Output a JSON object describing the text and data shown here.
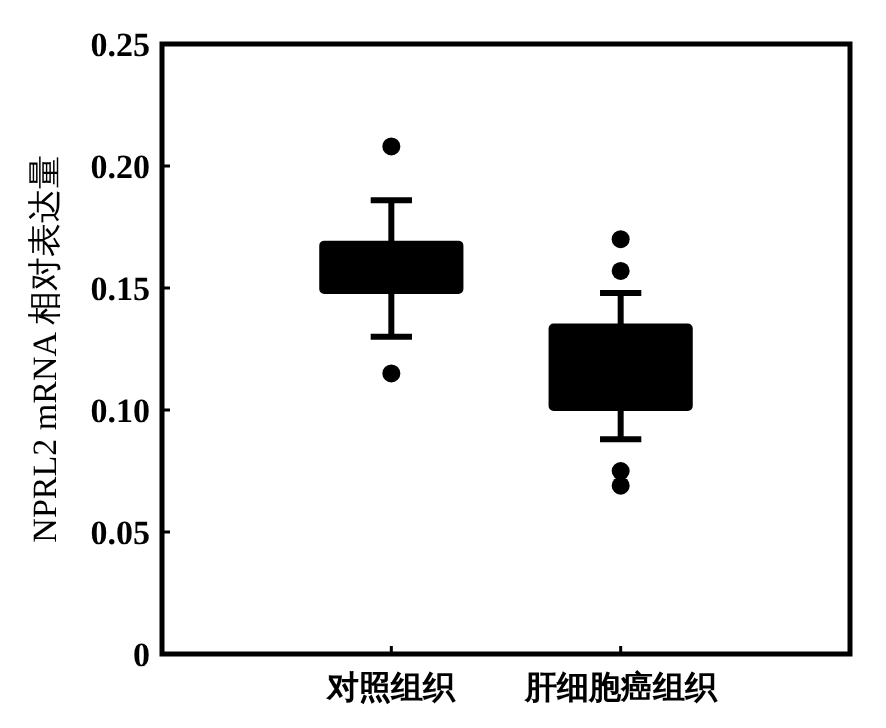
{
  "chart_data": {
    "type": "box",
    "ylabel": "NPRL2 mRNA 相对表达量",
    "categories": [
      "对照组织",
      "肝细胞癌组织"
    ],
    "series": [
      {
        "color": "#000000",
        "boxes": [
          {
            "low": 0.13,
            "q1": 0.148,
            "q3": 0.169,
            "high": 0.186,
            "outliers": [
              0.208,
              0.115
            ]
          },
          {
            "low": 0.088,
            "q1": 0.1,
            "q3": 0.135,
            "high": 0.148,
            "outliers": [
              0.17,
              0.157,
              0.075,
              0.069
            ]
          }
        ]
      }
    ],
    "ylim": [
      0,
      0.25
    ],
    "yticks": [
      0,
      0.05,
      {
        "value": 0.1,
        "label": "0.10"
      },
      0.15,
      {
        "value": 0.2,
        "label": "0.20"
      },
      0.25
    ]
  }
}
